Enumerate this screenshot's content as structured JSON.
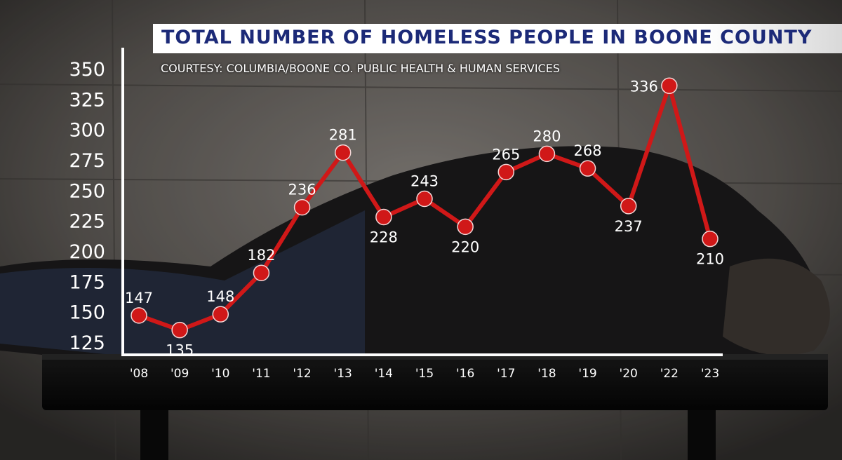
{
  "title": "TOTAL NUMBER OF HOMELESS PEOPLE IN BOONE COUNTY",
  "subtitle": "COURTESY: COLUMBIA/BOONE CO. PUBLIC HEALTH & HUMAN SERVICES",
  "colors": {
    "line": "#d01818",
    "marker": "#d01818",
    "title_text": "#1c2a78",
    "axis": "#ffffff"
  },
  "chart_data": {
    "type": "line",
    "title": "TOTAL NUMBER OF HOMELESS PEOPLE IN BOONE COUNTY",
    "xlabel": "",
    "ylabel": "",
    "categories": [
      "'08",
      "'09",
      "'10",
      "'11",
      "'12",
      "'13",
      "'14",
      "'15",
      "'16",
      "'17",
      "'18",
      "'19",
      "'20",
      "'22",
      "'23"
    ],
    "values": [
      147,
      135,
      148,
      182,
      236,
      281,
      228,
      243,
      220,
      265,
      280,
      268,
      237,
      336,
      210
    ],
    "data_labels": [
      "147",
      "135",
      "148",
      "182",
      "236",
      "281",
      "228",
      "243",
      "220",
      "265",
      "280",
      "268",
      "237",
      "336",
      "210"
    ],
    "yticks": [
      125,
      150,
      175,
      200,
      225,
      250,
      275,
      300,
      325,
      350
    ],
    "ytick_labels": [
      "125",
      "150",
      "175",
      "200",
      "225",
      "250",
      "275",
      "300",
      "325",
      "350"
    ],
    "ylim": [
      118,
      355
    ],
    "grid": false,
    "legend": "none"
  }
}
